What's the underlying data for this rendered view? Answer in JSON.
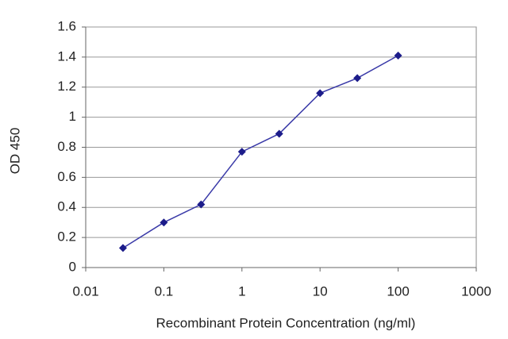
{
  "chart_data": {
    "type": "line",
    "x_label": "Recombinant Protein Concentration (ng/ml)",
    "y_label": "OD 450",
    "x": [
      0.03,
      0.1,
      0.3,
      1,
      3,
      10,
      30,
      100
    ],
    "values": [
      0.13,
      0.3,
      0.42,
      0.77,
      0.89,
      1.16,
      1.26,
      1.41
    ],
    "color": "#3a3aa8",
    "marker_color": "#1c1c8a",
    "x_scale": "log",
    "xlim": [
      0.01,
      1000
    ],
    "xticks": [
      0.01,
      0.1,
      1,
      10,
      100,
      1000
    ],
    "ylim": [
      0,
      1.6
    ],
    "yticks": [
      0,
      0.2,
      0.4,
      0.6,
      0.8,
      1,
      1.2,
      1.4,
      1.6
    ],
    "grid": true
  }
}
